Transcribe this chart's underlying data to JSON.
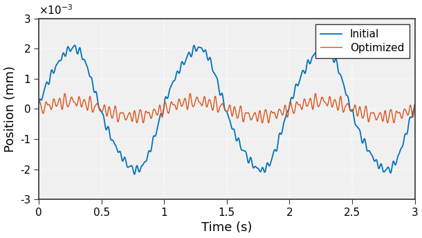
{
  "xlabel": "Time (s)",
  "ylabel": "Position (mm)",
  "xlim": [
    0,
    3
  ],
  "ylim": [
    -0.003,
    0.003
  ],
  "yticks": [
    -0.003,
    -0.002,
    -0.001,
    0,
    0.001,
    0.002,
    0.003
  ],
  "xticks": [
    0,
    0.5,
    1.0,
    1.5,
    2.0,
    2.5,
    3.0
  ],
  "blue_color": "#0072BD",
  "orange_color": "#D95319",
  "legend_labels": [
    "Initial",
    "Optimized"
  ],
  "duration": 3.0,
  "n_samples": 6000,
  "background_color": "#f0f0f0",
  "grid_color": "#ffffff",
  "ylabel_fontsize": 13,
  "xlabel_fontsize": 13,
  "tick_fontsize": 11,
  "legend_fontsize": 11,
  "yticklabels": [
    "-3",
    "-2",
    "-1",
    "0",
    "1",
    "2",
    "3"
  ],
  "xticklabels": [
    "0",
    "0.5",
    "1",
    "1.5",
    "2",
    "2.5",
    "3"
  ]
}
